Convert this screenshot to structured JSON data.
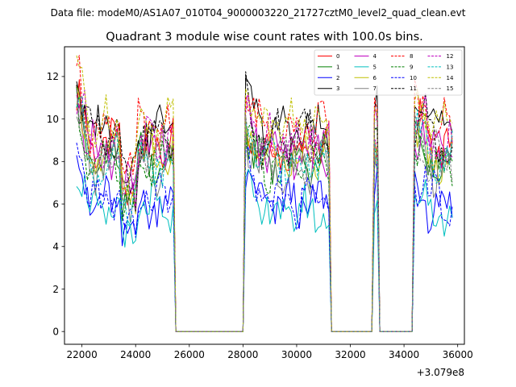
{
  "chart_data": {
    "type": "line",
    "suptitle": "Data file: modeM0/AS1A07_010T04_9000003220_21727cztM0_level2_quad_clean.evt",
    "title": "Quadrant 3 module wise count rates with 100.0s bins.",
    "xlabel": "",
    "ylabel": "",
    "x_offset_label": "+3.079e8",
    "xlim": [
      21350,
      36250
    ],
    "ylim": [
      -0.6,
      13.4
    ],
    "xticks": [
      22000,
      24000,
      26000,
      28000,
      30000,
      32000,
      34000,
      36000
    ],
    "yticks": [
      0,
      2,
      4,
      6,
      8,
      10,
      12
    ],
    "legend_position": "upper-right",
    "gaps": [
      [
        25550,
        27950
      ],
      [
        31350,
        32750
      ],
      [
        33150,
        34250
      ]
    ],
    "segments": [
      [
        21800,
        25450
      ],
      [
        28050,
        31250
      ],
      [
        32850,
        33050
      ],
      [
        34350,
        35850
      ]
    ],
    "series": [
      {
        "name": "0",
        "color": "#ff0000",
        "dash": "solid",
        "level": 8.7
      },
      {
        "name": "1",
        "color": "#008000",
        "dash": "solid",
        "level": 8.0
      },
      {
        "name": "2",
        "color": "#0000ff",
        "dash": "solid",
        "level": 6.0
      },
      {
        "name": "3",
        "color": "#000000",
        "dash": "solid",
        "level": 9.5
      },
      {
        "name": "4",
        "color": "#bf00bf",
        "dash": "solid",
        "level": 8.6
      },
      {
        "name": "5",
        "color": "#00bfbf",
        "dash": "solid",
        "level": 5.6
      },
      {
        "name": "6",
        "color": "#bfbf00",
        "dash": "solid",
        "level": 8.3
      },
      {
        "name": "7",
        "color": "#808080",
        "dash": "solid",
        "level": 7.8
      },
      {
        "name": "8",
        "color": "#ff0000",
        "dash": "dashed",
        "level": 9.6
      },
      {
        "name": "9",
        "color": "#008000",
        "dash": "dashed",
        "level": 7.9
      },
      {
        "name": "10",
        "color": "#0000ff",
        "dash": "dashed",
        "level": 6.2
      },
      {
        "name": "11",
        "color": "#000000",
        "dash": "dashed",
        "level": 9.1
      },
      {
        "name": "12",
        "color": "#bf00bf",
        "dash": "dashed",
        "level": 8.9
      },
      {
        "name": "13",
        "color": "#00bfbf",
        "dash": "dashed",
        "level": 8.1
      },
      {
        "name": "14",
        "color": "#bfbf00",
        "dash": "dashed",
        "level": 9.8
      },
      {
        "name": "15",
        "color": "#808080",
        "dash": "dashed",
        "level": 8.2
      }
    ]
  }
}
